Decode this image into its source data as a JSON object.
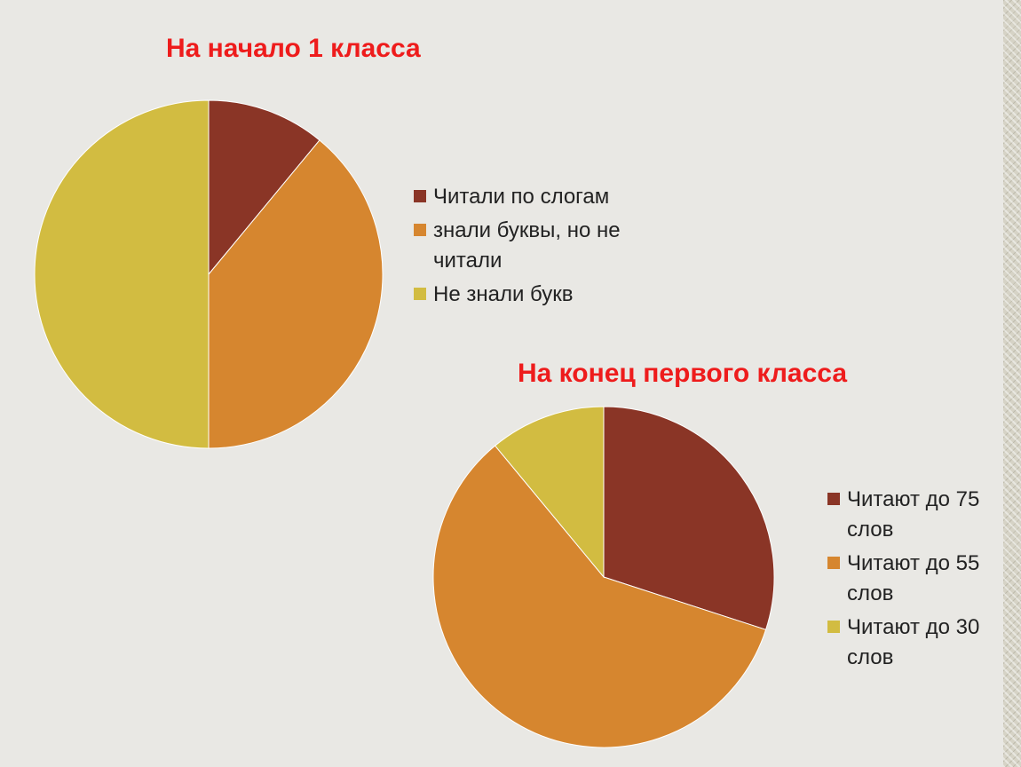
{
  "slide": {
    "background": "#e9e8e4"
  },
  "chart_data": [
    {
      "type": "pie",
      "title": "На начало 1 класса",
      "categories": [
        "Читали по слогам",
        "знали буквы, но не читали",
        "Не знали букв"
      ],
      "values": [
        11,
        39,
        50
      ],
      "colors": [
        "#8a3526",
        "#d6862f",
        "#d2bc41"
      ],
      "start_angle_deg": 0,
      "direction": "clockwise",
      "legend_position": "right"
    },
    {
      "type": "pie",
      "title": "На конец первого класса",
      "categories": [
        "Читают до 75 слов",
        "Читают до 55 слов",
        "Читают до 30 слов"
      ],
      "values": [
        30,
        59,
        11
      ],
      "colors": [
        "#8a3526",
        "#d6862f",
        "#d2bc41"
      ],
      "start_angle_deg": 0,
      "direction": "clockwise",
      "legend_position": "right"
    }
  ]
}
